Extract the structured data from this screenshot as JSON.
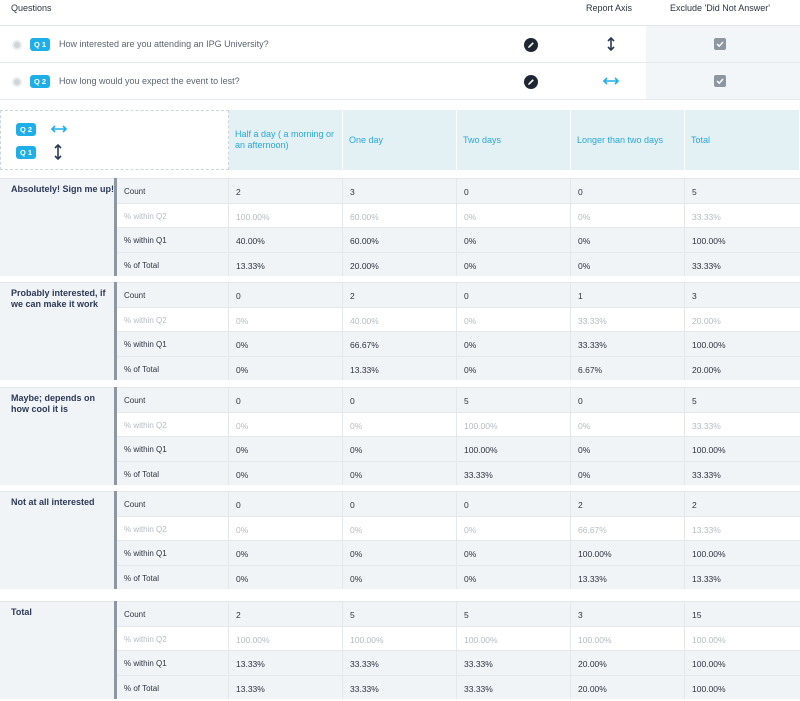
{
  "questions_panel": {
    "header": {
      "questions": "Questions",
      "report_axis": "Report Axis",
      "exclude": "Exclude 'Did Not Answer'"
    },
    "rows": [
      {
        "badge": "Q 1",
        "text": "How interested are you attending an IPG University?",
        "axis_icon": "vertical-arrow-icon",
        "exclude_checked": true
      },
      {
        "badge": "Q 2",
        "text": "How long would you expect the event to lest?",
        "axis_icon": "horizontal-arrow-icon",
        "exclude_checked": true
      }
    ]
  },
  "legend": {
    "q2_badge": "Q 2",
    "q1_badge": "Q 1"
  },
  "columns": [
    "Half a day ( a morning or an afternoon)",
    "One day",
    "Two days",
    "Longer than two days",
    "Total"
  ],
  "row_groups": [
    {
      "label": "Absolutely! Sign me up!",
      "rows": [
        {
          "stat": "Count",
          "values": [
            "2",
            "3",
            "0",
            "0",
            "5"
          ]
        },
        {
          "stat": "% within Q2",
          "values": [
            "100.00%",
            "60.00%",
            "0%",
            "0%",
            "33.33%"
          ]
        },
        {
          "stat": "% within Q1",
          "values": [
            "40.00%",
            "60.00%",
            "0%",
            "0%",
            "100.00%"
          ]
        },
        {
          "stat": "% of Total",
          "values": [
            "13.33%",
            "20.00%",
            "0%",
            "0%",
            "33.33%"
          ]
        }
      ]
    },
    {
      "label": "Probably interested, if we can make it work",
      "rows": [
        {
          "stat": "Count",
          "values": [
            "0",
            "2",
            "0",
            "1",
            "3"
          ]
        },
        {
          "stat": "% within Q2",
          "values": [
            "0%",
            "40.00%",
            "0%",
            "33.33%",
            "20.00%"
          ]
        },
        {
          "stat": "% within Q1",
          "values": [
            "0%",
            "66.67%",
            "0%",
            "33.33%",
            "100.00%"
          ]
        },
        {
          "stat": "% of Total",
          "values": [
            "0%",
            "13.33%",
            "0%",
            "6.67%",
            "20.00%"
          ]
        }
      ]
    },
    {
      "label": "Maybe; depends on how cool it is",
      "rows": [
        {
          "stat": "Count",
          "values": [
            "0",
            "0",
            "5",
            "0",
            "5"
          ]
        },
        {
          "stat": "% within Q2",
          "values": [
            "0%",
            "0%",
            "100.00%",
            "0%",
            "33.33%"
          ]
        },
        {
          "stat": "% within Q1",
          "values": [
            "0%",
            "0%",
            "100.00%",
            "0%",
            "100.00%"
          ]
        },
        {
          "stat": "% of Total",
          "values": [
            "0%",
            "0%",
            "33.33%",
            "0%",
            "33.33%"
          ]
        }
      ]
    },
    {
      "label": "Not at all interested",
      "rows": [
        {
          "stat": "Count",
          "values": [
            "0",
            "0",
            "0",
            "2",
            "2"
          ]
        },
        {
          "stat": "% within Q2",
          "values": [
            "0%",
            "0%",
            "0%",
            "66.67%",
            "13.33%"
          ]
        },
        {
          "stat": "% within Q1",
          "values": [
            "0%",
            "0%",
            "0%",
            "100.00%",
            "100.00%"
          ]
        },
        {
          "stat": "% of Total",
          "values": [
            "0%",
            "0%",
            "0%",
            "13.33%",
            "13.33%"
          ]
        }
      ]
    },
    {
      "label": "Total",
      "rows": [
        {
          "stat": "Count",
          "values": [
            "2",
            "5",
            "5",
            "3",
            "15"
          ]
        },
        {
          "stat": "% within Q2",
          "values": [
            "100.00%",
            "100.00%",
            "100.00%",
            "100.00%",
            "100.00%"
          ]
        },
        {
          "stat": "% within Q1",
          "values": [
            "13.33%",
            "33.33%",
            "33.33%",
            "20.00%",
            "100.00%"
          ]
        },
        {
          "stat": "% of Total",
          "values": [
            "13.33%",
            "33.33%",
            "33.33%",
            "20.00%",
            "100.00%"
          ]
        }
      ]
    }
  ],
  "colors": {
    "accent": "#1eaee8",
    "header_bg": "#e3f1f4",
    "row_bg": "#f1f4f6",
    "axis_dark": "#2b3a58"
  }
}
